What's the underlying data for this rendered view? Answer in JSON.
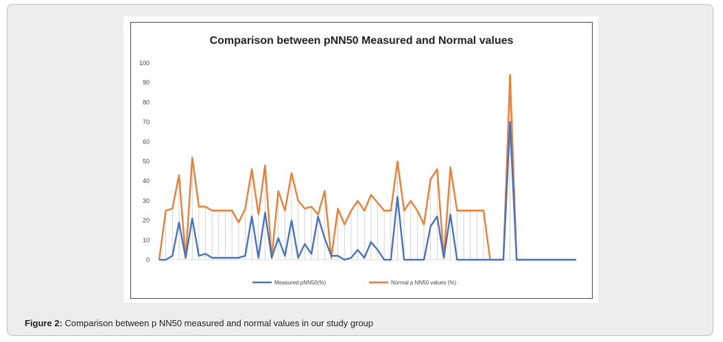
{
  "caption": {
    "label": "Figure 2:",
    "text": "Comparison between p NN50 measured and normal values in our study group"
  },
  "colors": {
    "measured": "#4472c4",
    "normal": "#ed7d31",
    "drop": "#c8c8c8",
    "axis": "#d9d9d9"
  },
  "chart_data": {
    "type": "line",
    "title": "Comparison between pNN50  Measured and Normal values",
    "ylim": [
      0,
      100
    ],
    "yticks": [
      0,
      10,
      20,
      30,
      40,
      50,
      60,
      70,
      80,
      90,
      100
    ],
    "grid": false,
    "drop_lines": true,
    "legend_position": "bottom",
    "series": [
      {
        "name": "Measured pNN50(%)",
        "values": [
          0,
          0,
          2,
          19,
          1,
          21,
          2,
          3,
          1,
          1,
          1,
          1,
          1,
          2,
          22,
          1,
          24,
          1,
          11,
          2,
          20,
          1,
          8,
          3,
          22,
          11,
          2,
          2,
          0,
          1,
          5,
          1,
          9,
          5,
          0,
          0,
          32,
          0,
          0,
          0,
          0,
          17,
          22,
          1,
          23,
          0,
          0,
          0,
          0,
          0,
          0,
          0,
          0,
          70,
          0,
          0,
          0,
          0,
          0,
          0,
          0,
          0,
          0,
          0
        ]
      },
      {
        "name": "Normal p NN50 values (%)",
        "values": [
          0,
          25,
          26,
          43,
          1,
          52,
          27,
          27,
          25,
          25,
          25,
          25,
          19,
          26,
          46,
          23,
          48,
          1,
          35,
          25,
          44,
          30,
          26,
          27,
          23,
          35,
          1,
          26,
          18,
          25,
          30,
          25,
          33,
          29,
          25,
          25,
          50,
          25,
          30,
          25,
          18,
          41,
          46,
          1,
          47,
          25,
          25,
          25,
          25,
          25,
          0,
          0,
          0,
          94,
          0,
          0,
          0,
          0,
          0,
          0,
          0,
          0,
          0,
          0
        ]
      }
    ]
  }
}
